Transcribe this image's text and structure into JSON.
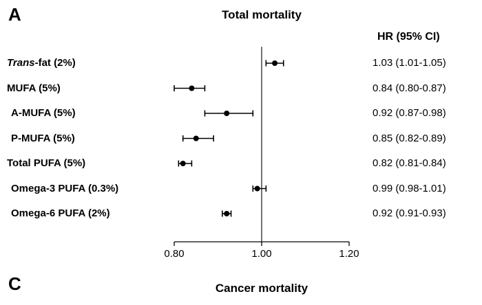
{
  "panel_a": {
    "label": "A",
    "title": "Total mortality",
    "hr_header": "HR (95% CI)"
  },
  "panel_c": {
    "label": "C",
    "title": "Cancer mortality"
  },
  "chart_data": {
    "type": "forest",
    "title": "Total mortality",
    "value_column_header": "HR (95% CI)",
    "x_axis": {
      "ticks": [
        "0.80",
        "1.00",
        "1.20"
      ],
      "tick_values": [
        0.8,
        1.0,
        1.2
      ],
      "range": [
        0.8,
        1.2
      ],
      "ref_line": 1.0
    },
    "rows": [
      {
        "label_italic": "Trans",
        "label": "-fat (2%)",
        "indent": false,
        "hr": 1.03,
        "ci_low": 1.01,
        "ci_high": 1.05,
        "hr_text": "1.03 (1.01-1.05)"
      },
      {
        "label_italic": "",
        "label": "MUFA (5%)",
        "indent": false,
        "hr": 0.84,
        "ci_low": 0.8,
        "ci_high": 0.87,
        "hr_text": "0.84 (0.80-0.87)"
      },
      {
        "label_italic": "",
        "label": "A-MUFA (5%)",
        "indent": true,
        "hr": 0.92,
        "ci_low": 0.87,
        "ci_high": 0.98,
        "hr_text": "0.92 (0.87-0.98)"
      },
      {
        "label_italic": "",
        "label": "P-MUFA (5%)",
        "indent": true,
        "hr": 0.85,
        "ci_low": 0.82,
        "ci_high": 0.89,
        "hr_text": "0.85 (0.82-0.89)"
      },
      {
        "label_italic": "",
        "label": "Total PUFA (5%)",
        "indent": false,
        "hr": 0.82,
        "ci_low": 0.81,
        "ci_high": 0.84,
        "hr_text": "0.82 (0.81-0.84)"
      },
      {
        "label_italic": "",
        "label": "Omega-3 PUFA (0.3%)",
        "indent": true,
        "hr": 0.99,
        "ci_low": 0.98,
        "ci_high": 1.01,
        "hr_text": "0.99 (0.98-1.01)"
      },
      {
        "label_italic": "",
        "label": "Omega-6 PUFA (2%)",
        "indent": true,
        "hr": 0.92,
        "ci_low": 0.91,
        "ci_high": 0.93,
        "hr_text": "0.92 (0.91-0.93)"
      }
    ]
  }
}
